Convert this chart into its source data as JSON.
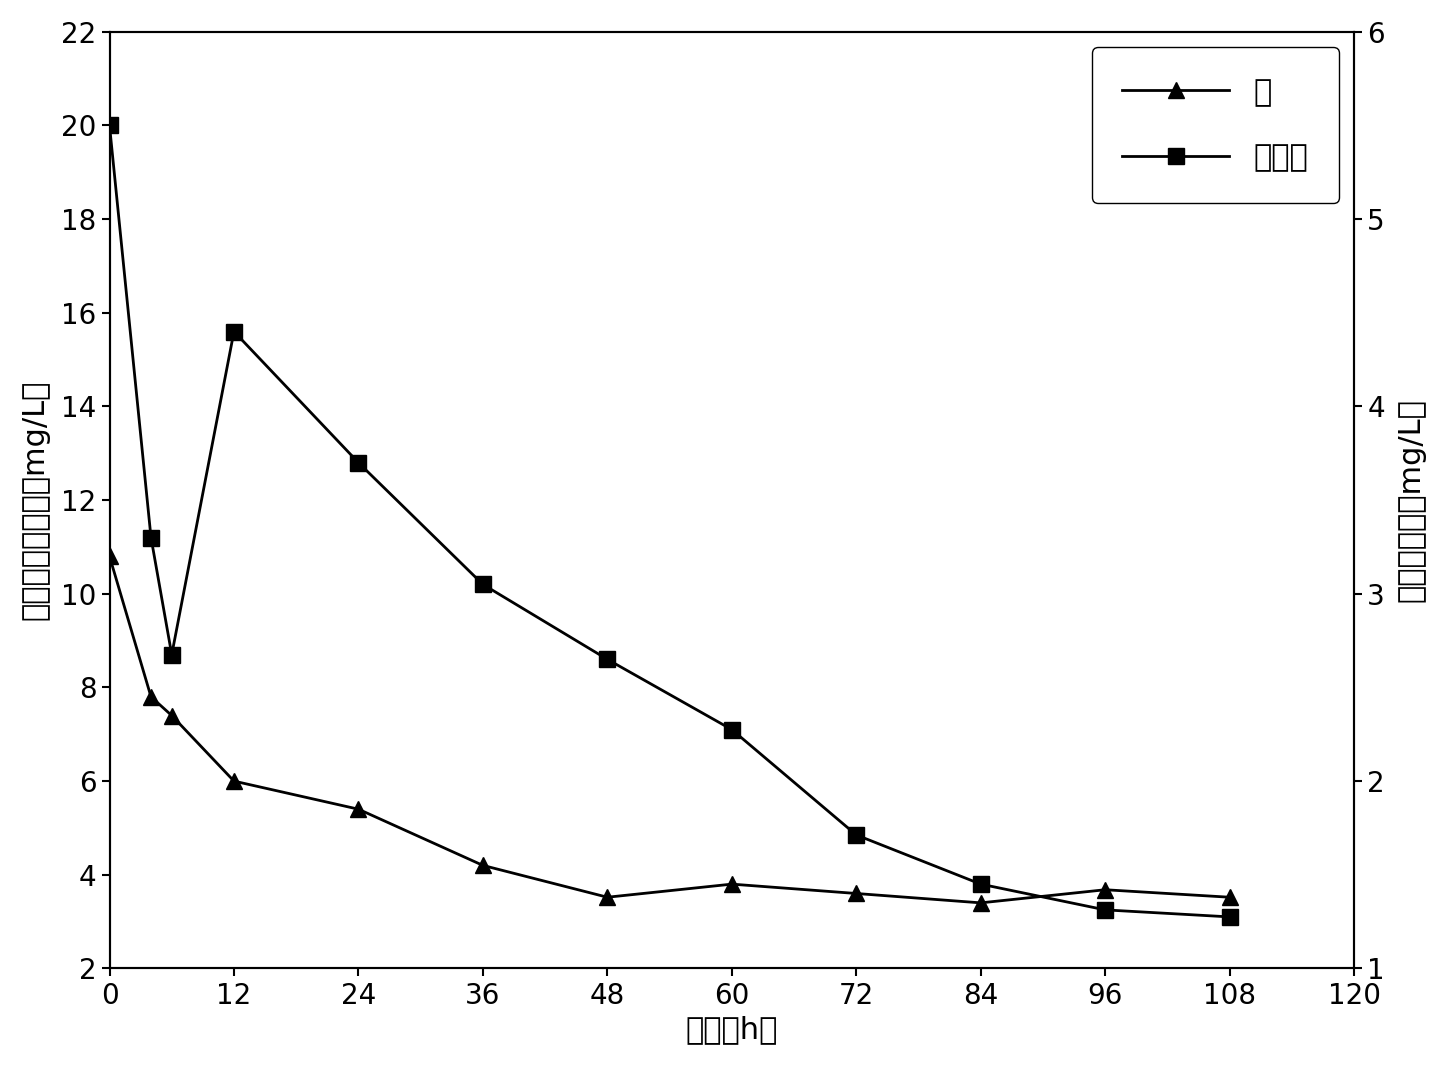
{
  "cd_time": [
    0,
    4,
    6,
    12,
    24,
    36,
    48,
    60,
    72,
    84,
    96,
    108
  ],
  "cd_vals": [
    3.2,
    2.45,
    2.35,
    2.0,
    1.85,
    1.55,
    1.38,
    1.45,
    1.4,
    1.35,
    1.42,
    1.38
  ],
  "dcp_time": [
    0,
    4,
    6,
    12,
    24,
    36,
    48,
    60,
    72,
    84,
    96,
    108
  ],
  "dcp_vals": [
    20.0,
    11.2,
    8.7,
    15.6,
    12.8,
    10.2,
    8.6,
    7.1,
    4.85,
    3.8,
    3.25,
    3.1
  ],
  "left_ylim": [
    2,
    22
  ],
  "left_yticks": [
    2,
    4,
    6,
    8,
    10,
    12,
    14,
    16,
    18,
    20,
    22
  ],
  "right_ylim": [
    1.0,
    6.0
  ],
  "right_yticks": [
    1,
    2,
    3,
    4,
    5,
    6
  ],
  "xlim": [
    0,
    120
  ],
  "xticks": [
    0,
    12,
    24,
    36,
    48,
    60,
    72,
    84,
    96,
    108,
    120
  ],
  "xlabel": "时间（h）",
  "ylabel_left": "二氯酚残余浓度（mg/L）",
  "ylabel_right": "镛残余浓度（mg/L）",
  "legend_cd": "镛",
  "legend_dcp": "二氯酚",
  "line_color": "#000000",
  "marker_cd": "^",
  "marker_dcp": "s",
  "markersize": 12,
  "linewidth": 2.0,
  "fontsize_ticks": 20,
  "fontsize_labels": 22,
  "fontsize_legend": 22,
  "background_color": "#ffffff"
}
